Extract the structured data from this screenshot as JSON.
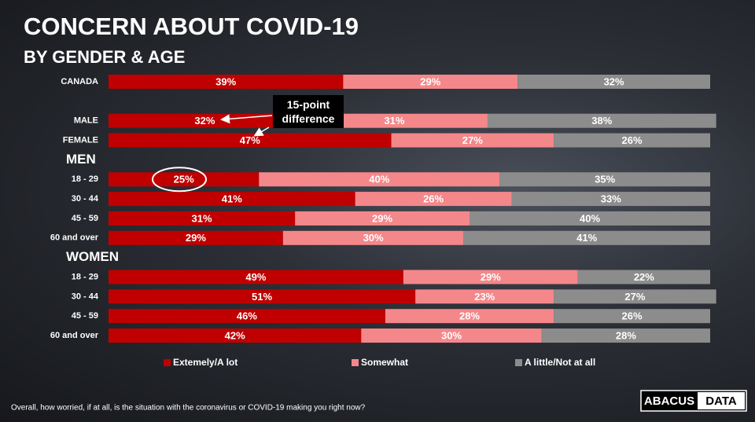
{
  "chart_data": {
    "type": "stacked_bar_horizontal",
    "title": "CONCERN ABOUT COVID-19",
    "subtitle": "BY GENDER & AGE",
    "categories": [
      "CANADA",
      "MALE",
      "FEMALE",
      "18 - 29",
      "30 - 44",
      "45 - 59",
      "60 and over",
      "18 - 29",
      "30 - 44",
      "45 - 59",
      "60 and over"
    ],
    "group_labels": [
      "MEN",
      "WOMEN"
    ],
    "xlim": [
      0,
      100
    ],
    "series": [
      {
        "name": "Extemely/A lot",
        "color": "#c00000",
        "values": [
          39,
          32,
          47,
          25,
          41,
          31,
          29,
          49,
          51,
          46,
          42
        ],
        "value_labels": [
          "39%",
          "32%",
          "47%",
          "25%",
          "41%",
          "31%",
          "29%",
          "49%",
          "51%",
          "46%",
          "42%"
        ]
      },
      {
        "name": "Somewhat",
        "color": "#f4878a",
        "values": [
          29,
          31,
          27,
          40,
          26,
          29,
          30,
          29,
          23,
          28,
          30
        ],
        "value_labels": [
          "29%",
          "31%",
          "27%",
          "40%",
          "26%",
          "29%",
          "30%",
          "29%",
          "23%",
          "28%",
          "30%"
        ]
      },
      {
        "name": "A little/Not at all",
        "color": "#8c8c8c",
        "values": [
          32,
          38,
          26,
          35,
          33,
          40,
          41,
          22,
          27,
          26,
          28
        ],
        "value_labels": [
          "32%",
          "38%",
          "26%",
          "35%",
          "33%",
          "40%",
          "41%",
          "22%",
          "27%",
          "26%",
          "28%"
        ]
      }
    ],
    "annotation": "15-point difference",
    "footnote": "Overall, how worried, if at all, is the situation with the coronavirus or COVID-19 making you right now?",
    "logo": {
      "left": "ABACUS",
      "right": "DATA"
    }
  }
}
